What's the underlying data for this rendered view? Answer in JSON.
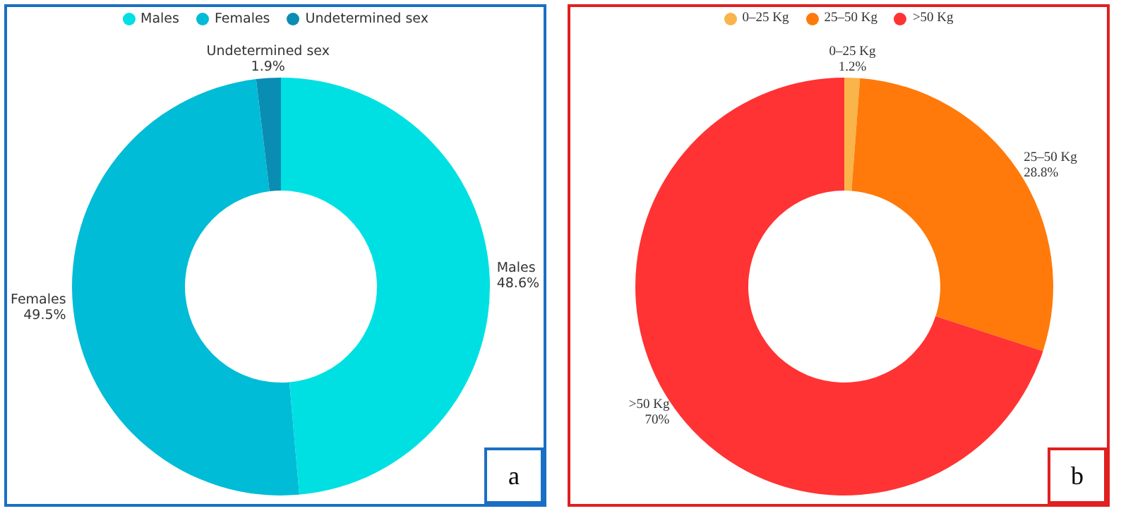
{
  "chart_data": [
    {
      "type": "donut",
      "categories": [
        "Males",
        "Females",
        "Undetermined sex"
      ],
      "values": [
        48.6,
        49.5,
        1.9
      ],
      "colors": [
        "#00e0e3",
        "#00bcd6",
        "#0a8db3"
      ],
      "value_labels": [
        "48.6%",
        "49.5%",
        "1.9%"
      ],
      "legend": "top",
      "annotations": [
        "a"
      ]
    },
    {
      "type": "donut",
      "categories": [
        "0–25 Kg",
        "25–50 Kg",
        ">50 Kg"
      ],
      "values": [
        1.2,
        28.8,
        70
      ],
      "colors": [
        "#f9b44a",
        "#ff7a0a",
        "#ff3333"
      ],
      "value_labels": [
        "1.2%",
        "28.8%",
        "70%"
      ],
      "legend": "top",
      "annotations": [
        "b"
      ]
    }
  ]
}
